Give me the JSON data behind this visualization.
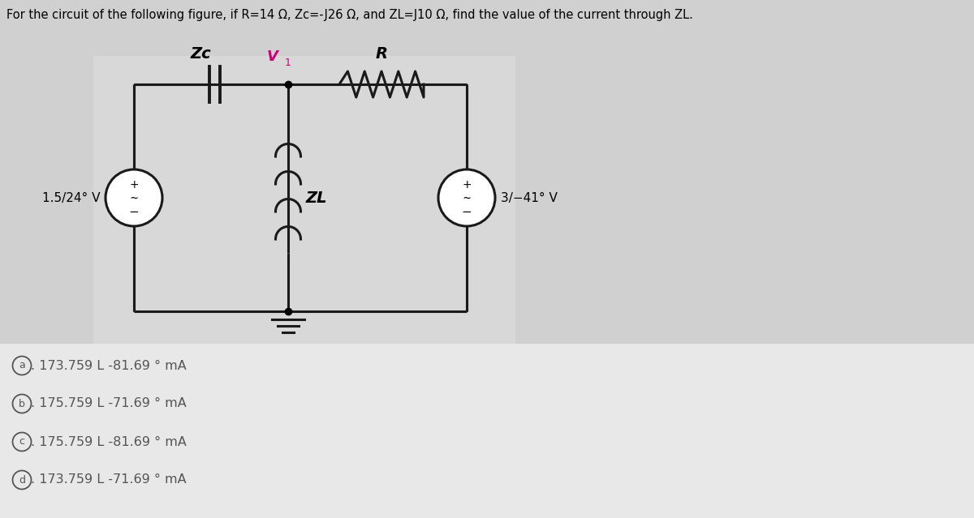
{
  "title": "For the circuit of the following figure, if R=14 Ω, Zc=-J26 Ω, and ZL=J10 Ω, find the value of the current through ZL.",
  "bg_color": "#d0d0d0",
  "circuit_bg": "#e2e2e2",
  "option_a": "Oa. 173.759 L -81.69 ° mA",
  "option_b": "Ob. 175.759 L -71.69 ° mA",
  "option_c": "Oc. 175.759 L -81.69 ° mA",
  "option_d": "Od. 173.759 L -71.69 ° mA",
  "src1_label": "1.5/24° V",
  "src2_label": "3/−41° V",
  "Zc_label": "Zc",
  "R_label": "R",
  "ZL_label": "ZL",
  "V1_label": "V",
  "wire_color": "#1a1a1a",
  "text_color": "#333333"
}
